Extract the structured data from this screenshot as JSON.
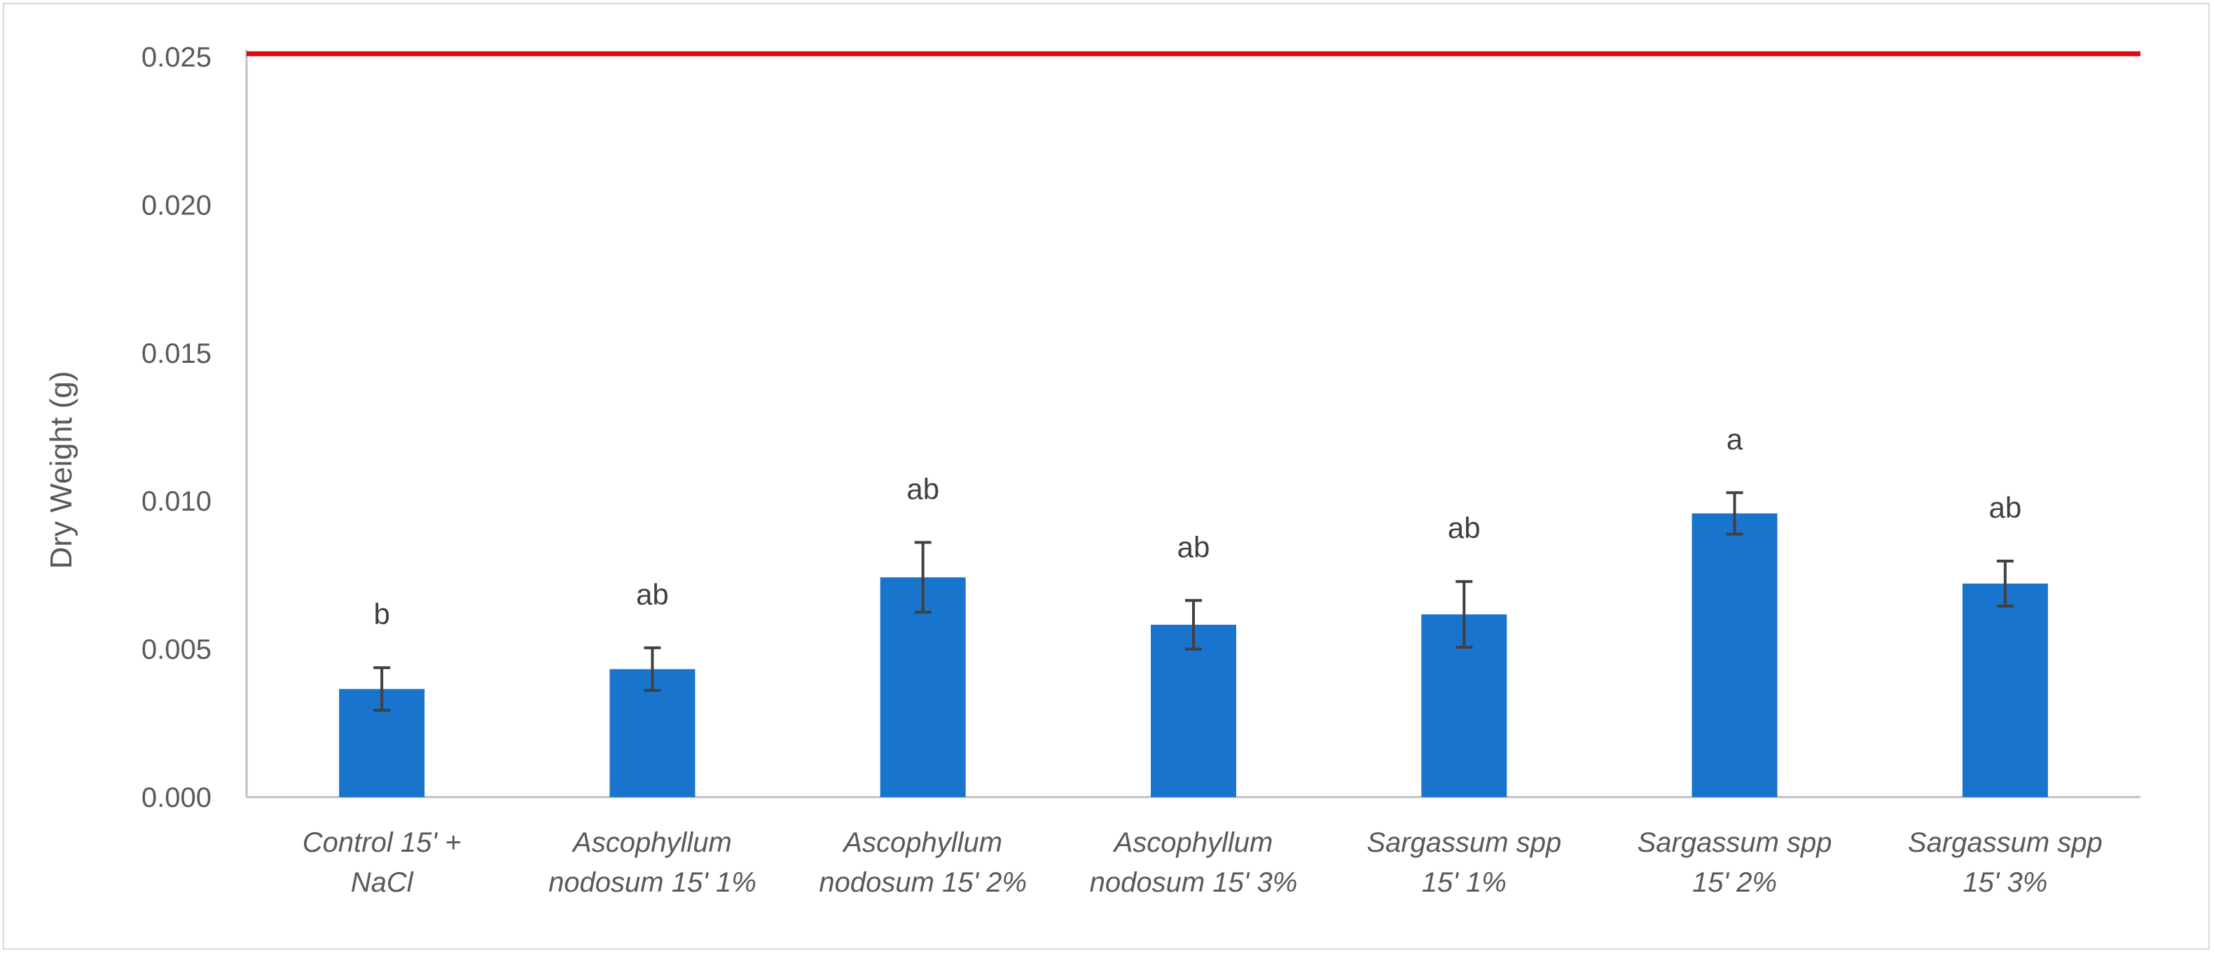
{
  "chart_data": {
    "type": "bar",
    "title": "",
    "xlabel": "",
    "ylabel": "Dry Weight (g)",
    "ylim": [
      0,
      0.025
    ],
    "yticks": [
      "0.000",
      "0.005",
      "0.010",
      "0.015",
      "0.020",
      "0.025"
    ],
    "ytick_values": [
      0,
      0.005,
      0.01,
      0.015,
      0.02,
      0.025
    ],
    "categories": [
      [
        "Control 15' +",
        "NaCl"
      ],
      [
        "Ascophyllum",
        "nodosum 15' 1%"
      ],
      [
        "Ascophyllum",
        "nodosum 15' 2%"
      ],
      [
        "Ascophyllum",
        "nodosum 15' 3%"
      ],
      [
        "Sargassum spp",
        "15' 1%"
      ],
      [
        "Sargassum spp",
        "15' 2%"
      ],
      [
        "Sargassum spp",
        "15' 3%"
      ]
    ],
    "values": [
      0.00365,
      0.00432,
      0.00742,
      0.00582,
      0.00617,
      0.00958,
      0.00721
    ],
    "errors": [
      0.00072,
      0.00072,
      0.00118,
      0.00082,
      0.00111,
      0.0007,
      0.00076
    ],
    "significance": [
      "b",
      "ab",
      "ab",
      "ab",
      "ab",
      "a",
      "ab"
    ],
    "reference_line": 0.0251,
    "grid": false,
    "legend": "none",
    "colors": {
      "bar": "#1874cd",
      "error_bar": "#404040",
      "reference_line": "#e30613",
      "axis": "#bfbfbf"
    }
  }
}
